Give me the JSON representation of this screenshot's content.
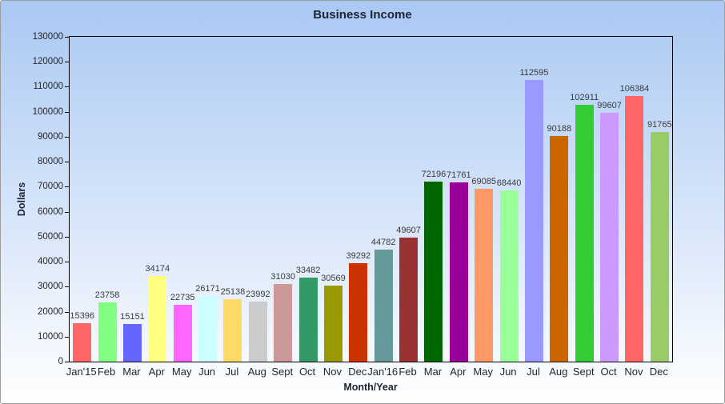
{
  "chart_data": {
    "type": "bar",
    "title": "Business Income",
    "xlabel": "Month/Year",
    "ylabel": "Dollars",
    "ylim": [
      0,
      130000
    ],
    "yticks": [
      0,
      10000,
      20000,
      30000,
      40000,
      50000,
      60000,
      70000,
      80000,
      90000,
      100000,
      110000,
      120000,
      130000
    ],
    "grid": false,
    "legend": "none",
    "value_labels_shown": true,
    "categories": [
      "Jan'15",
      "Feb",
      "Mar",
      "Apr",
      "May",
      "Jun",
      "Jul",
      "Aug",
      "Sept",
      "Oct",
      "Nov",
      "Dec",
      "Jan'16",
      "Feb",
      "Mar",
      "Apr",
      "May",
      "Jun",
      "Jul",
      "Aug",
      "Sept",
      "Oct",
      "Nov",
      "Dec"
    ],
    "values": [
      15396,
      23758,
      15151,
      34174,
      22735,
      26171,
      25138,
      23992,
      31030,
      33482,
      30569,
      39292,
      44782,
      49607,
      72196,
      71761,
      69085,
      68440,
      112595,
      90188,
      102911,
      99607,
      106384,
      91765
    ],
    "colors": [
      "#FF6666",
      "#80FF80",
      "#6666FF",
      "#FFFF80",
      "#FF66FF",
      "#CCFFFF",
      "#FFD966",
      "#CCCCCC",
      "#CC9999",
      "#339966",
      "#999900",
      "#CC3300",
      "#669999",
      "#993333",
      "#006600",
      "#990099",
      "#FF9966",
      "#99FF99",
      "#9999FF",
      "#CC6600",
      "#33CC33",
      "#CC99FF",
      "#FF6666",
      "#99CC66"
    ]
  },
  "style": {
    "background_top": "#A9C8F3",
    "background_bottom": "#FFFFFF",
    "axis_color": "#000000",
    "tick_text_color": "#26262B",
    "value_label_color": "#3A3A3A",
    "outer_border_color": "#9C9C9C"
  }
}
